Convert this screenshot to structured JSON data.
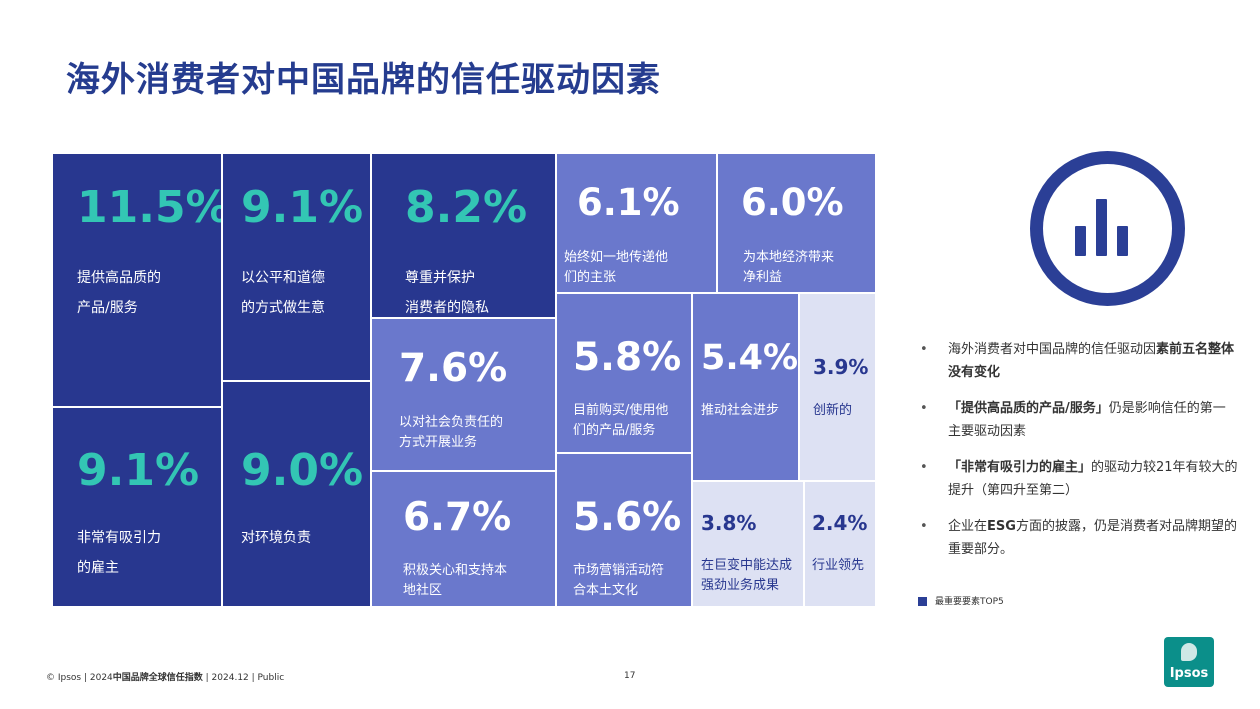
{
  "title": "海外消费者对中国品牌的信任驱动因素",
  "treemap": [
    {
      "pct": "11.5%",
      "label": "提供高品质的\n产品/服务",
      "tone": "dark"
    },
    {
      "pct": "9.1%",
      "label": "以公平和道德\n的方式做生意",
      "tone": "dark"
    },
    {
      "pct": "8.2%",
      "label": "尊重并保护\n消费者的隐私",
      "tone": "dark"
    },
    {
      "pct": "6.1%",
      "label": "始终如一地传递他\n们的主张",
      "tone": "mid"
    },
    {
      "pct": "6.0%",
      "label": "为本地经济带来\n净利益",
      "tone": "mid"
    },
    {
      "pct": "9.1%",
      "label": "非常有吸引力\n的雇主",
      "tone": "dark"
    },
    {
      "pct": "9.0%",
      "label": "对环境负责",
      "tone": "dark"
    },
    {
      "pct": "7.6%",
      "label": "以对社会负责任的\n方式开展业务",
      "tone": "mid"
    },
    {
      "pct": "5.8%",
      "label": "目前购买/使用他\n们的产品/服务",
      "tone": "mid"
    },
    {
      "pct": "5.4%",
      "label": "推动社会进步",
      "tone": "mid"
    },
    {
      "pct": "3.9%",
      "label": "创新的",
      "tone": "light"
    },
    {
      "pct": "6.7%",
      "label": "积极关心和支持本\n地社区",
      "tone": "mid"
    },
    {
      "pct": "5.6%",
      "label": "市场营销活动符\n合本土文化",
      "tone": "mid"
    },
    {
      "pct": "3.8%",
      "label": "在巨变中能达成\n强劲业务成果",
      "tone": "light"
    },
    {
      "pct": "2.4%",
      "label": "行业领先",
      "tone": "light"
    }
  ],
  "icon": "bar-chart-circle-icon",
  "bullets": [
    {
      "pre": "海外消费者对中国品牌的信任驱动因",
      "bold": "素前五名整体没有变化",
      "post": ""
    },
    {
      "pre": "",
      "bold": "「提供高品质的产品/服务」",
      "post": "仍是影响信任的第一主要驱动因素"
    },
    {
      "pre": "",
      "bold": "「非常有吸引力的雇主」",
      "post": "的驱动力较21年有较大的提升（第四升至第二）"
    },
    {
      "pre": "企业在",
      "bold": "ESG",
      "post": "方面的披露，仍是消费者对品牌期望的重要部分。"
    }
  ],
  "legend": "最重要要素TOP5",
  "footer": {
    "copyright": "© Ipsos | 2024",
    "report": "中国品牌全球信任指数",
    "rest": " | 2024.12 | Public",
    "page": "17"
  },
  "brand": "Ipsos",
  "colors": {
    "dark": "#28378f",
    "mid": "#6a78cc",
    "light": "#dde1f3",
    "accent": "#33c6b4"
  }
}
